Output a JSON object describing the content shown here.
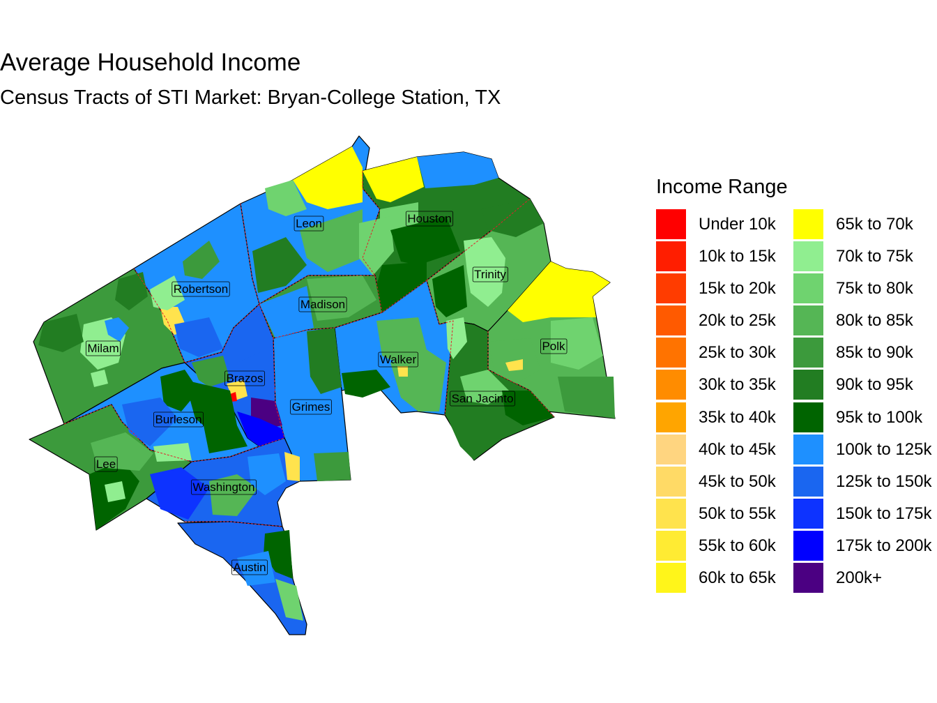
{
  "title": "Average Household Income",
  "subtitle": "Census Tracts of STI Market: Bryan-College Station, TX",
  "legend": {
    "title": "Income Range",
    "items": [
      {
        "label": "Under 10k",
        "color": "#FF0000"
      },
      {
        "label": "10k to 15k",
        "color": "#FF1E00"
      },
      {
        "label": "15k to 20k",
        "color": "#FF3C00"
      },
      {
        "label": "20k to 25k",
        "color": "#FF5A00"
      },
      {
        "label": "25k to 30k",
        "color": "#FF7300"
      },
      {
        "label": "30k to 35k",
        "color": "#FF8C00"
      },
      {
        "label": "35k to 40k",
        "color": "#FFA500"
      },
      {
        "label": "40k to 45k",
        "color": "#FFD580"
      },
      {
        "label": "45k to 50k",
        "color": "#FFDA66"
      },
      {
        "label": "50k to 55k",
        "color": "#FFE34D"
      },
      {
        "label": "55k to 60k",
        "color": "#FFEB33"
      },
      {
        "label": "60k to 65k",
        "color": "#FFF51A"
      },
      {
        "label": "65k to 70k",
        "color": "#FFFF00"
      },
      {
        "label": "70k to 75k",
        "color": "#90EE90"
      },
      {
        "label": "75k to 80k",
        "color": "#6FD36F"
      },
      {
        "label": "80k to 85k",
        "color": "#55B655"
      },
      {
        "label": "85k to 90k",
        "color": "#3C9A3C"
      },
      {
        "label": "90k to 95k",
        "color": "#227D22"
      },
      {
        "label": "95k to 100k",
        "color": "#006400"
      },
      {
        "label": "100k to 125k",
        "color": "#1E90FF"
      },
      {
        "label": "125k to 150k",
        "color": "#1A66F0"
      },
      {
        "label": "150k to 175k",
        "color": "#0D33FF"
      },
      {
        "label": "175k to 200k",
        "color": "#0000FF"
      },
      {
        "label": "200k+",
        "color": "#4B0082"
      }
    ]
  },
  "counties": [
    {
      "name": "Leon",
      "fill": "#1E90FF"
    },
    {
      "name": "Houston",
      "fill": "#227D22"
    },
    {
      "name": "Robertson",
      "fill": "#1E90FF"
    },
    {
      "name": "Madison",
      "fill": "#3C9A3C"
    },
    {
      "name": "Trinity",
      "fill": "#55B655"
    },
    {
      "name": "Milam",
      "fill": "#3C9A3C"
    },
    {
      "name": "Polk",
      "fill": "#55B655"
    },
    {
      "name": "Walker",
      "fill": "#1E90FF"
    },
    {
      "name": "Brazos",
      "fill": "#1A66F0"
    },
    {
      "name": "Grimes",
      "fill": "#1E90FF"
    },
    {
      "name": "San Jacinto",
      "fill": "#227D22"
    },
    {
      "name": "Burleson",
      "fill": "#1E90FF"
    },
    {
      "name": "Lee",
      "fill": "#3C9A3C"
    },
    {
      "name": "Washington",
      "fill": "#1A66F0"
    },
    {
      "name": "Austin",
      "fill": "#1A66F0"
    }
  ]
}
